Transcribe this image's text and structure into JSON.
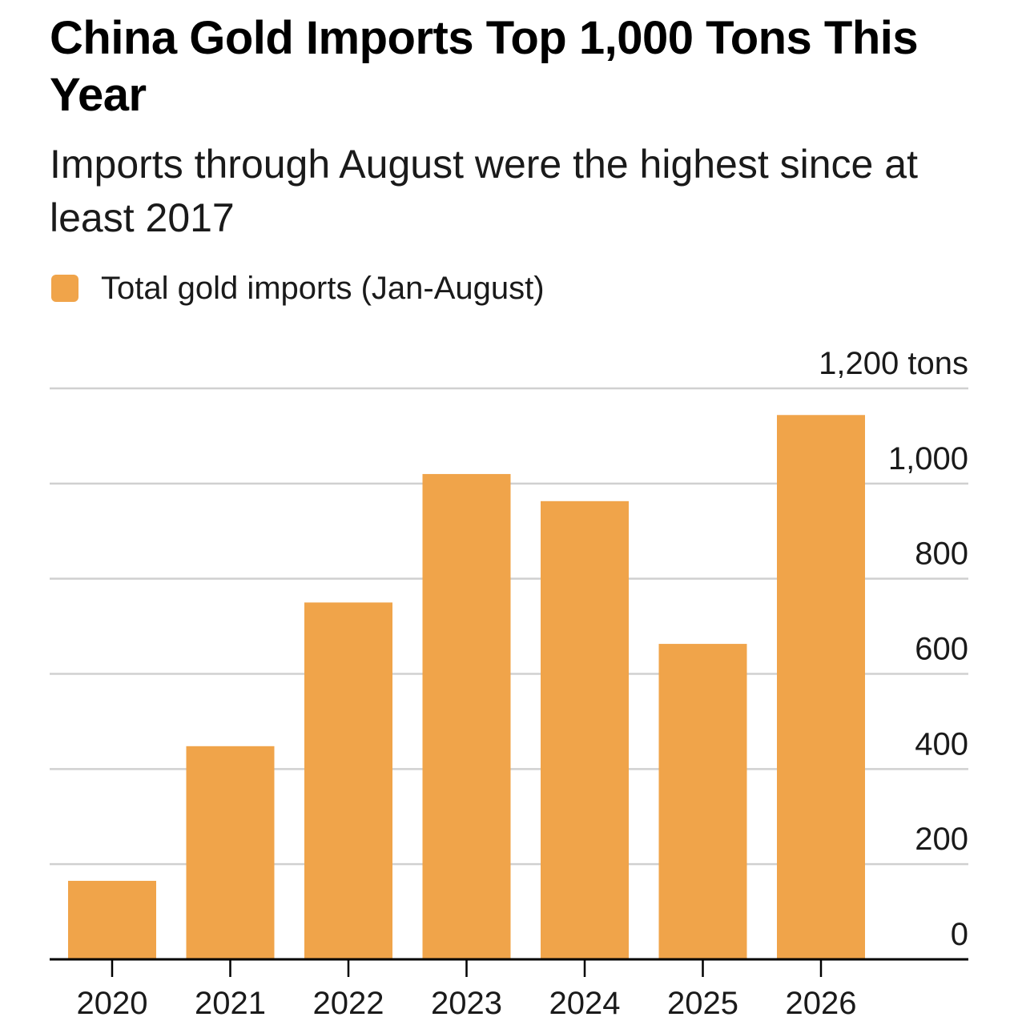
{
  "header": {
    "title": "China Gold Imports Top 1,000 Tons This Year",
    "subtitle": "Imports through August were the highest since at least 2017"
  },
  "legend": {
    "label": "Total gold imports (Jan-August)",
    "color": "#F0A44A"
  },
  "colors": {
    "bar": "#F0A44A",
    "grid": "#d0d0d0",
    "baseline": "#000000"
  },
  "chart_data": {
    "type": "bar",
    "title": "China Gold Imports Top 1,000 Tons This Year",
    "subtitle": "Imports through August were the highest since at least 2017",
    "categories": [
      "2020",
      "2021",
      "2022",
      "2023",
      "2024",
      "2025",
      "2026"
    ],
    "series": [
      {
        "name": "Total gold imports (Jan-August)",
        "values": [
          165,
          448,
          750,
          1020,
          963,
          663,
          1144
        ]
      }
    ],
    "xlabel": "",
    "ylabel": "",
    "ylim": [
      0,
      1200
    ],
    "yticks": [
      0,
      200,
      400,
      600,
      800,
      1000,
      1200
    ],
    "ytick_labels": [
      "0",
      "200",
      "400",
      "600",
      "800",
      "1,000",
      "1,200 tons"
    ],
    "y_axis_side": "right",
    "grid": true,
    "legend_position": "top-left"
  }
}
